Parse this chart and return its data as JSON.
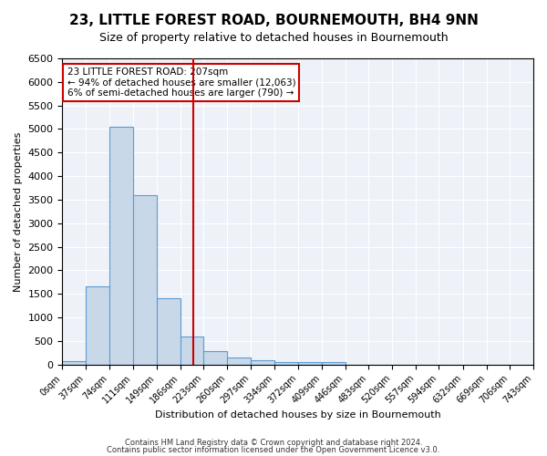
{
  "title": "23, LITTLE FOREST ROAD, BOURNEMOUTH, BH4 9NN",
  "subtitle": "Size of property relative to detached houses in Bournemouth",
  "xlabel": "Distribution of detached houses by size in Bournemouth",
  "ylabel": "Number of detached properties",
  "bar_color": "#c8d8e8",
  "bar_edge_color": "#5b9bd5",
  "background_color": "#eef2f8",
  "grid_color": "#ffffff",
  "bin_edges": [
    0,
    37,
    74,
    111,
    149,
    186,
    223,
    260,
    297,
    334,
    372,
    409,
    446,
    483,
    520,
    557,
    594,
    632,
    669,
    706,
    743
  ],
  "bar_heights": [
    75,
    1650,
    5050,
    3600,
    1400,
    600,
    280,
    150,
    90,
    60,
    60,
    60,
    0,
    0,
    0,
    0,
    0,
    0,
    0,
    0
  ],
  "red_line_x": 207,
  "ylim": [
    0,
    6500
  ],
  "yticks": [
    0,
    500,
    1000,
    1500,
    2000,
    2500,
    3000,
    3500,
    4000,
    4500,
    5000,
    5500,
    6000,
    6500
  ],
  "annotation_line1": "23 LITTLE FOREST ROAD: 207sqm",
  "annotation_line2": "← 94% of detached houses are smaller (12,063)",
  "annotation_line3": "6% of semi-detached houses are larger (790) →",
  "annotation_box_color": "#ffffff",
  "annotation_border_color": "#cc0000",
  "footer_line1": "Contains HM Land Registry data © Crown copyright and database right 2024.",
  "footer_line2": "Contains public sector information licensed under the Open Government Licence v3.0."
}
